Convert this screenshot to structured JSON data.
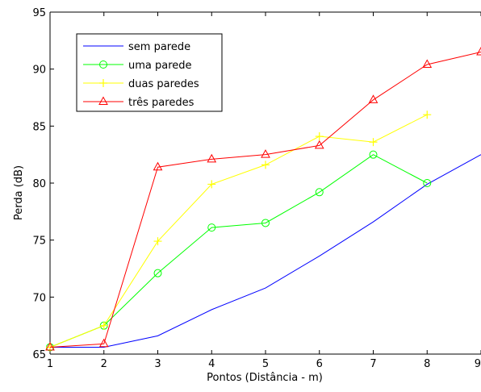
{
  "chart_data": {
    "type": "line",
    "xlabel": "Pontos (Distância - m)",
    "ylabel": "Perda (dB)",
    "xlim": [
      1,
      9
    ],
    "ylim": [
      65,
      95
    ],
    "xticks": [
      1,
      2,
      3,
      4,
      5,
      6,
      7,
      8,
      9
    ],
    "yticks": [
      65,
      70,
      75,
      80,
      85,
      90,
      95
    ],
    "grid": false,
    "legend_position": "top-left",
    "series": [
      {
        "name": "sem parede",
        "color": "#0000ff",
        "marker": "none",
        "x": [
          1,
          2,
          3,
          4,
          5,
          6,
          7,
          8,
          9
        ],
        "values": [
          65.6,
          65.6,
          66.6,
          68.9,
          70.8,
          73.6,
          76.6,
          79.9,
          82.5
        ]
      },
      {
        "name": "uma parede",
        "color": "#00ff00",
        "marker": "circle",
        "x": [
          1,
          2,
          3,
          4,
          5,
          6,
          7,
          8
        ],
        "values": [
          65.6,
          67.5,
          72.1,
          76.1,
          76.5,
          79.2,
          82.5,
          80.0
        ]
      },
      {
        "name": "duas paredes",
        "color": "#ffff00",
        "marker": "plus",
        "x": [
          1,
          2,
          3,
          4,
          5,
          6,
          7,
          8
        ],
        "values": [
          65.6,
          67.5,
          74.9,
          79.9,
          81.6,
          84.1,
          83.6,
          86.0
        ]
      },
      {
        "name": "três paredes",
        "color": "#ff0000",
        "marker": "triangle",
        "x": [
          1,
          2,
          3,
          4,
          5,
          6,
          7,
          8,
          9
        ],
        "values": [
          65.6,
          65.9,
          81.4,
          82.1,
          82.5,
          83.3,
          87.3,
          90.4,
          91.5
        ]
      }
    ]
  }
}
